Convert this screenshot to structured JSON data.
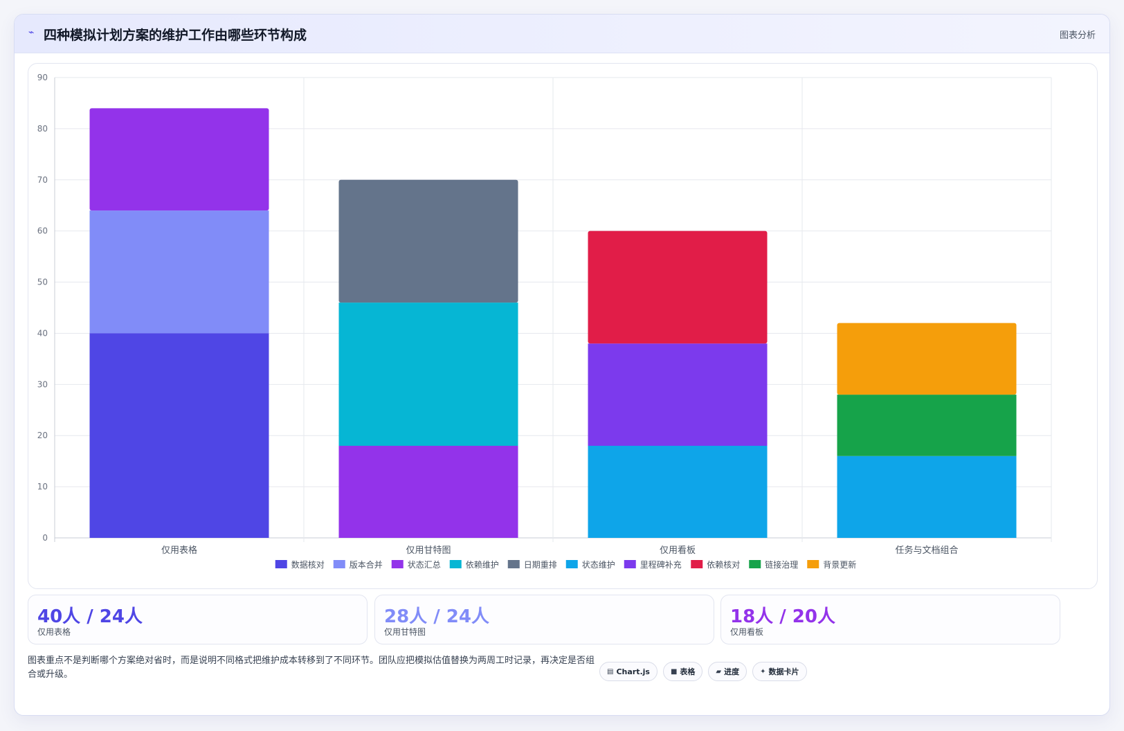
{
  "header": {
    "logo_icon": "pulse-icon",
    "title": "四种模拟计划方案的维护工作由哪些环节构成",
    "tag": "图表分析"
  },
  "chart_data": {
    "type": "bar",
    "stacked": true,
    "categories": [
      "仅用表格",
      "仅用甘特图",
      "仅用看板",
      "任务与文档组合"
    ],
    "ylim": [
      0,
      90
    ],
    "yticks": [
      0,
      10,
      20,
      30,
      40,
      50,
      60,
      70,
      80,
      90
    ],
    "grid": true,
    "legend_position": "bottom",
    "series": [
      {
        "name": "数据核对",
        "color": "#4f46e5",
        "values": [
          40,
          0,
          0,
          0
        ]
      },
      {
        "name": "版本合并",
        "color": "#818cf8",
        "values": [
          24,
          0,
          0,
          0
        ]
      },
      {
        "name": "状态汇总",
        "color": "#9333ea",
        "values": [
          20,
          18,
          0,
          0
        ]
      },
      {
        "name": "依赖维护",
        "color": "#06b6d4",
        "values": [
          0,
          28,
          0,
          0
        ]
      },
      {
        "name": "日期重排",
        "color": "#64748b",
        "values": [
          0,
          24,
          0,
          0
        ]
      },
      {
        "name": "状态维护",
        "color": "#0ea5e9",
        "values": [
          0,
          0,
          18,
          16
        ]
      },
      {
        "name": "里程碑补充",
        "color": "#7c3aed",
        "values": [
          0,
          0,
          20,
          0
        ]
      },
      {
        "name": "依赖核对",
        "color": "#e11d48",
        "values": [
          0,
          0,
          22,
          0
        ]
      },
      {
        "name": "链接治理",
        "color": "#16a34a",
        "values": [
          0,
          0,
          0,
          12
        ]
      },
      {
        "name": "背景更新",
        "color": "#f59e0b",
        "values": [
          0,
          0,
          0,
          14
        ]
      }
    ]
  },
  "kpis": [
    {
      "value": "40人 / 24人",
      "label": "仅用表格",
      "color": "#4f46e5"
    },
    {
      "value": "28人 / 24人",
      "label": "仅用甘特图",
      "color": "#818cf8"
    },
    {
      "value": "18人 / 20人",
      "label": "仅用看板",
      "color": "#9333ea"
    }
  ],
  "note": "图表重点不是判断哪个方案绝对省时，而是说明不同格式把维护成本转移到了不同环节。团队应把模拟估值替换为两周工时记录，再决定是否组合或升级。",
  "chips": [
    {
      "icon": "chart-icon",
      "glyph": "▤",
      "label": "Chart.js"
    },
    {
      "icon": "table-icon",
      "glyph": "■",
      "label": "表格"
    },
    {
      "icon": "progress-icon",
      "glyph": "▰",
      "label": "进度"
    },
    {
      "icon": "sparkle-icon",
      "glyph": "✦",
      "label": "数据卡片"
    }
  ]
}
